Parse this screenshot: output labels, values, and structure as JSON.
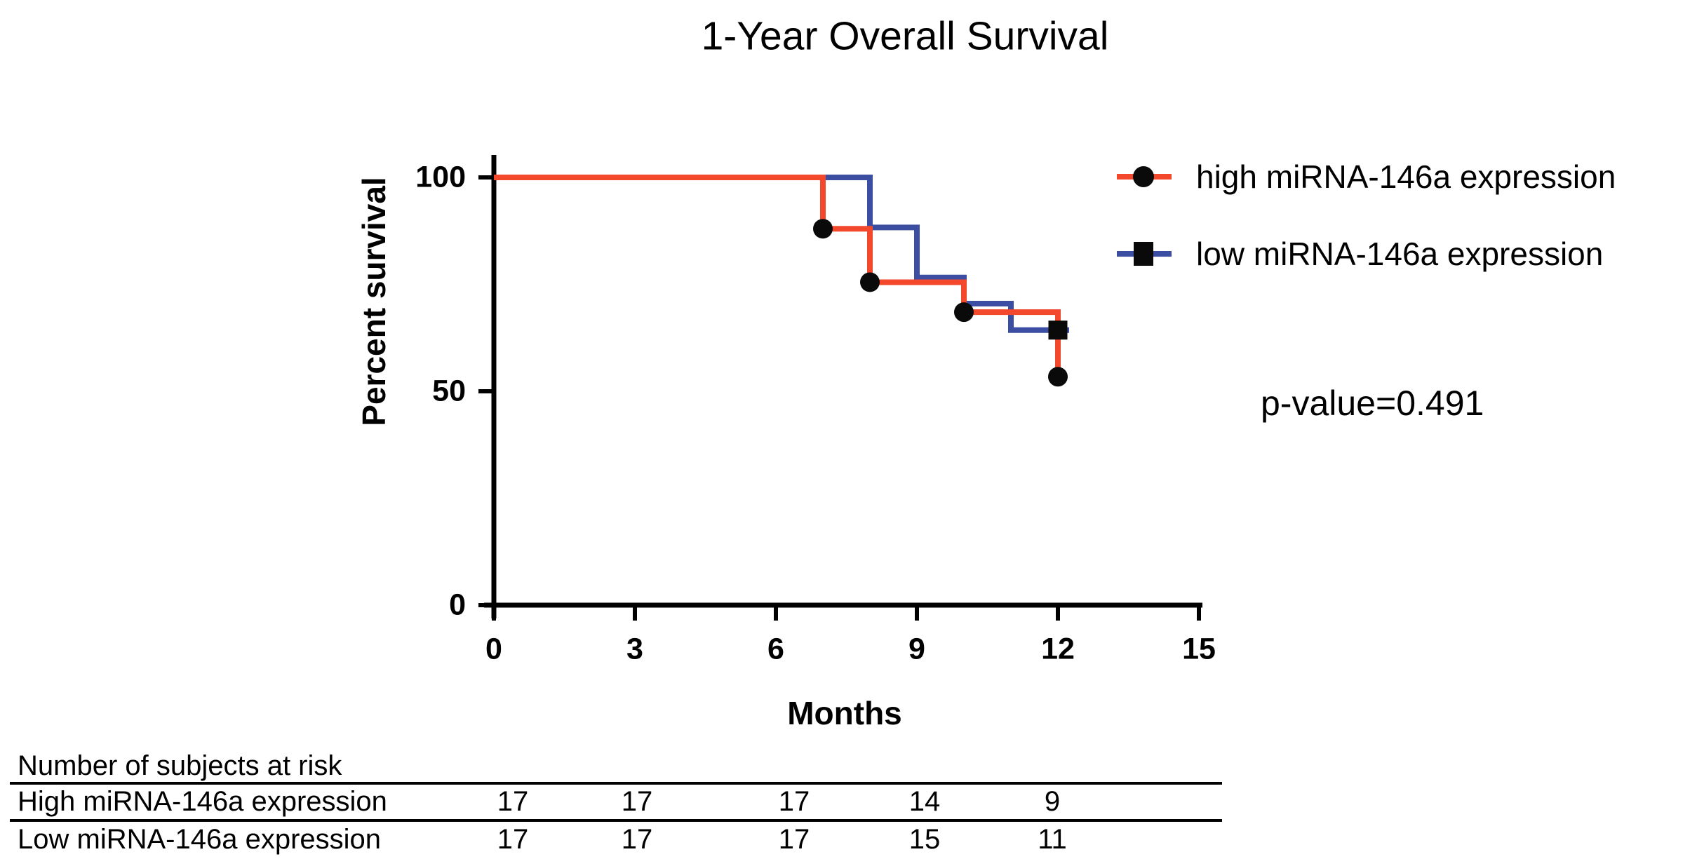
{
  "title": "1-Year Overall Survival",
  "p_value_text": "p-value=0.491",
  "colors": {
    "high_series": "#f4482c",
    "low_series": "#3b4ea1",
    "marker": "#0a0a0a",
    "axis": "#000000"
  },
  "legend": {
    "items": [
      {
        "label": "high miRNA-146a expression",
        "line_color": "#f4482c",
        "marker": "circle",
        "marker_color": "#0a0a0a"
      },
      {
        "label": "low miRNA-146a expression",
        "line_color": "#3b4ea1",
        "marker": "square",
        "marker_color": "#0a0a0a"
      }
    ]
  },
  "chart_data": {
    "type": "line",
    "subtype": "kaplan-meier-step",
    "title": "1-Year Overall Survival",
    "xlabel": "Months",
    "ylabel": "Percent survival",
    "xlim": [
      0,
      15
    ],
    "ylim": [
      0,
      100
    ],
    "x_ticks": [
      0,
      3,
      6,
      9,
      12,
      15
    ],
    "y_ticks": [
      100,
      50,
      0
    ],
    "grid": false,
    "legend_position": "upper right outside plot",
    "annotation": "p-value=0.491",
    "series": [
      {
        "name": "high miRNA-146a expression",
        "color": "#f4482c",
        "step_x": [
          0,
          7,
          8,
          10,
          12
        ],
        "step_y": [
          100,
          88,
          75.5,
          68.5,
          53.4
        ],
        "marker_shape": "circle",
        "marker_points": [
          [
            7,
            88
          ],
          [
            8,
            75.5
          ],
          [
            10,
            68.5
          ],
          [
            12,
            53.4
          ]
        ]
      },
      {
        "name": "low miRNA-146a expression",
        "color": "#3b4ea1",
        "step_x": [
          0,
          8,
          9,
          10,
          11,
          12
        ],
        "step_y": [
          100,
          88.3,
          76.6,
          70.5,
          64.3,
          64.3
        ],
        "marker_shape": "square",
        "marker_points": [
          [
            12,
            64.3
          ]
        ]
      }
    ]
  },
  "risk_table": {
    "header": "Number of subjects at risk",
    "columns_months": [
      0,
      3,
      6,
      9,
      12
    ],
    "rows": [
      {
        "label": "High miRNA-146a expression",
        "values": [
          17,
          17,
          17,
          14,
          9
        ]
      },
      {
        "label": "Low miRNA-146a expression",
        "values": [
          17,
          17,
          17,
          15,
          11
        ]
      }
    ]
  }
}
